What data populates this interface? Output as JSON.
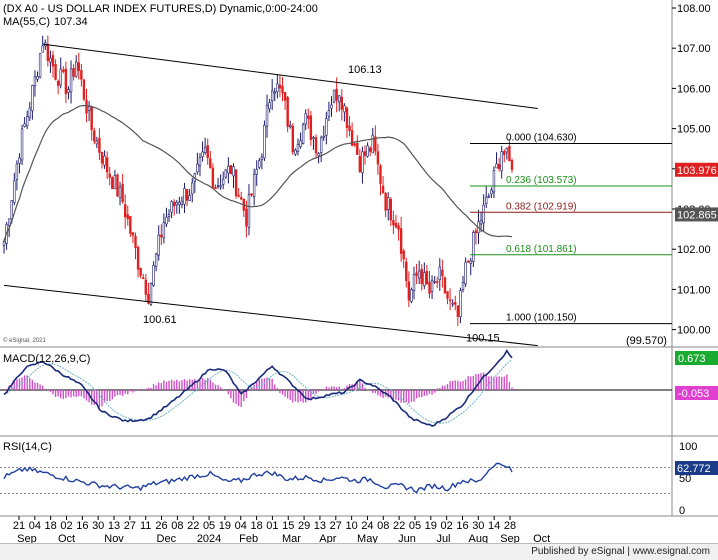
{
  "chart_data": {
    "type": "candlestick",
    "title": "(DX A0 - US DOLLAR INDEX FUTURES,D) Dynamic,0:00-24:00",
    "ma_label": "MA(55,C)",
    "ma_value": "107.34",
    "watermark": "© eSignal, 2021",
    "price_axis": {
      "min": 99.8,
      "max": 108.1,
      "ticks": [
        "108.00",
        "107.00",
        "106.00",
        "105.00",
        "104.00",
        "103.00",
        "102.00",
        "101.00",
        "100.00"
      ]
    },
    "last_price": "103.976",
    "ma_last": "102.865",
    "annotations": [
      {
        "text": "106.13",
        "price": 106.13
      },
      {
        "text": "100.61",
        "price": 100.61
      },
      {
        "text": "100.15",
        "price": 100.15
      },
      {
        "text": "(99.570)",
        "price": 99.57
      }
    ],
    "fibonacci": [
      {
        "label": "0.000 (104.630)",
        "price": 104.63,
        "color": "#000000"
      },
      {
        "label": "0.236 (103.573)",
        "price": 103.573,
        "color": "#1a8f1a"
      },
      {
        "label": "0.382 (102.919)",
        "price": 102.919,
        "color": "#8b1a1a"
      },
      {
        "label": "0.618 (101.861)",
        "price": 101.861,
        "color": "#1a8f1a"
      },
      {
        "label": "1.000 (100.150)",
        "price": 100.15,
        "color": "#000000"
      }
    ],
    "macd": {
      "label": "MACD(12,26,9,C)",
      "value": "0.673",
      "signal_value": "-0.053",
      "axis_ticks": []
    },
    "rsi": {
      "label": "RSI(14,C)",
      "value": "62.772",
      "axis_ticks": [
        "100",
        "50",
        "0"
      ],
      "levels": [
        70,
        30
      ]
    },
    "x_ticks": [
      "21",
      "04",
      "18",
      "02",
      "16",
      "30",
      "13",
      "27",
      "11",
      "26",
      "08",
      "22",
      "05",
      "19",
      "04",
      "18",
      "01",
      "15",
      "29",
      "13",
      "27",
      "10",
      "24",
      "08",
      "22",
      "05",
      "19",
      "02",
      "16",
      "30",
      "14",
      "28"
    ],
    "month_labels": [
      "Sep",
      "Oct",
      "Nov",
      "Dec",
      "2024",
      "Feb",
      "Mar",
      "Apr",
      "May",
      "Jun",
      "Jul",
      "Aug",
      "Sep",
      "Oct"
    ],
    "colors": {
      "up": "#1a1a6e",
      "down": "#e02020",
      "ma": "#555555",
      "macd": "#1a2a7a",
      "signal": "#6db5c8",
      "histogram": "#d050c8",
      "rsi": "#2040a0",
      "channel": "#000000",
      "last_price": "#e02020",
      "macd_badge": "#1aaa30",
      "hist_badge": "#e040d0",
      "rsi_badge": "#1a3a8a"
    },
    "anchors": [
      {
        "i": 0,
        "p": 102.2
      },
      {
        "i": 6,
        "p": 104.5
      },
      {
        "i": 12,
        "p": 106.2
      },
      {
        "i": 15,
        "p": 107.2
      },
      {
        "i": 20,
        "p": 106.4
      },
      {
        "i": 25,
        "p": 106.0
      },
      {
        "i": 28,
        "p": 106.7
      },
      {
        "i": 34,
        "p": 105.0
      },
      {
        "i": 40,
        "p": 104.0
      },
      {
        "i": 46,
        "p": 103.2
      },
      {
        "i": 52,
        "p": 101.7
      },
      {
        "i": 56,
        "p": 100.9
      },
      {
        "i": 62,
        "p": 102.7
      },
      {
        "i": 68,
        "p": 103.3
      },
      {
        "i": 73,
        "p": 103.5
      },
      {
        "i": 78,
        "p": 104.4
      },
      {
        "i": 82,
        "p": 103.6
      },
      {
        "i": 88,
        "p": 104.0
      },
      {
        "i": 94,
        "p": 102.8
      },
      {
        "i": 100,
        "p": 104.5
      },
      {
        "i": 104,
        "p": 106.2
      },
      {
        "i": 108,
        "p": 105.8
      },
      {
        "i": 112,
        "p": 104.6
      },
      {
        "i": 117,
        "p": 105.2
      },
      {
        "i": 122,
        "p": 104.5
      },
      {
        "i": 126,
        "p": 105.6
      },
      {
        "i": 130,
        "p": 106.0
      },
      {
        "i": 134,
        "p": 105.0
      },
      {
        "i": 138,
        "p": 104.2
      },
      {
        "i": 143,
        "p": 104.6
      },
      {
        "i": 148,
        "p": 103.2
      },
      {
        "i": 153,
        "p": 102.6
      },
      {
        "i": 157,
        "p": 100.8
      },
      {
        "i": 161,
        "p": 101.5
      },
      {
        "i": 165,
        "p": 100.9
      },
      {
        "i": 169,
        "p": 101.3
      },
      {
        "i": 173,
        "p": 100.6
      },
      {
        "i": 176,
        "p": 100.3
      },
      {
        "i": 179,
        "p": 101.5
      },
      {
        "i": 184,
        "p": 102.6
      },
      {
        "i": 189,
        "p": 103.5
      },
      {
        "i": 193,
        "p": 104.5
      },
      {
        "i": 197,
        "p": 103.98
      }
    ],
    "channel_upper": [
      {
        "i": 15,
        "p": 107.1
      },
      {
        "i": 207,
        "p": 105.5
      }
    ],
    "channel_lower": [
      {
        "i": 0,
        "p": 101.1
      },
      {
        "i": 207,
        "p": 99.6
      }
    ],
    "macd_pts": [
      {
        "i": 0,
        "v": -0.1
      },
      {
        "i": 8,
        "v": 0.45
      },
      {
        "i": 15,
        "v": 0.6
      },
      {
        "i": 22,
        "v": 0.35
      },
      {
        "i": 30,
        "v": 0.1
      },
      {
        "i": 38,
        "v": -0.45
      },
      {
        "i": 47,
        "v": -0.65
      },
      {
        "i": 56,
        "v": -0.6
      },
      {
        "i": 64,
        "v": -0.3
      },
      {
        "i": 72,
        "v": 0.05
      },
      {
        "i": 80,
        "v": 0.45
      },
      {
        "i": 86,
        "v": 0.4
      },
      {
        "i": 92,
        "v": -0.1
      },
      {
        "i": 98,
        "v": 0.2
      },
      {
        "i": 104,
        "v": 0.5
      },
      {
        "i": 110,
        "v": 0.2
      },
      {
        "i": 118,
        "v": -0.2
      },
      {
        "i": 126,
        "v": -0.1
      },
      {
        "i": 132,
        "v": -0.05
      },
      {
        "i": 138,
        "v": 0.2
      },
      {
        "i": 143,
        "v": 0.1
      },
      {
        "i": 150,
        "v": -0.15
      },
      {
        "i": 158,
        "v": -0.6
      },
      {
        "i": 166,
        "v": -0.75
      },
      {
        "i": 172,
        "v": -0.55
      },
      {
        "i": 178,
        "v": -0.3
      },
      {
        "i": 184,
        "v": 0.15
      },
      {
        "i": 190,
        "v": 0.5
      },
      {
        "i": 195,
        "v": 0.8
      },
      {
        "i": 197,
        "v": 0.67
      }
    ],
    "rsi_pts": [
      {
        "i": 0,
        "v": 55
      },
      {
        "i": 8,
        "v": 68
      },
      {
        "i": 15,
        "v": 62
      },
      {
        "i": 22,
        "v": 55
      },
      {
        "i": 30,
        "v": 48
      },
      {
        "i": 38,
        "v": 42
      },
      {
        "i": 45,
        "v": 40
      },
      {
        "i": 52,
        "v": 38
      },
      {
        "i": 58,
        "v": 45
      },
      {
        "i": 66,
        "v": 50
      },
      {
        "i": 74,
        "v": 57
      },
      {
        "i": 80,
        "v": 60
      },
      {
        "i": 86,
        "v": 48
      },
      {
        "i": 92,
        "v": 50
      },
      {
        "i": 98,
        "v": 60
      },
      {
        "i": 104,
        "v": 62
      },
      {
        "i": 110,
        "v": 52
      },
      {
        "i": 118,
        "v": 55
      },
      {
        "i": 124,
        "v": 50
      },
      {
        "i": 130,
        "v": 55
      },
      {
        "i": 136,
        "v": 50
      },
      {
        "i": 142,
        "v": 52
      },
      {
        "i": 148,
        "v": 40
      },
      {
        "i": 154,
        "v": 42
      },
      {
        "i": 160,
        "v": 35
      },
      {
        "i": 166,
        "v": 42
      },
      {
        "i": 172,
        "v": 38
      },
      {
        "i": 178,
        "v": 50
      },
      {
        "i": 184,
        "v": 48
      },
      {
        "i": 190,
        "v": 75
      },
      {
        "i": 195,
        "v": 74
      },
      {
        "i": 197,
        "v": 63
      }
    ]
  },
  "footer": "Published by eSignal | www.esignal.com"
}
